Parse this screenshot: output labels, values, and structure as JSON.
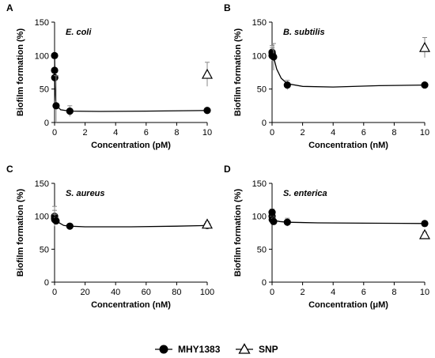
{
  "legend": {
    "entries": [
      {
        "label": "MHY1383",
        "marker": "filled-circle",
        "line": true
      },
      {
        "label": "SNP",
        "marker": "open-triangle",
        "line": true
      }
    ],
    "placement": "bottom-center"
  },
  "colors": {
    "mhy1383": "#000000",
    "snp": "#ffffff",
    "axis": "#000000",
    "errorbar": "#888888"
  },
  "chart_data": [
    {
      "panel": "A",
      "organism": "E. coli",
      "type": "scatter",
      "xlabel": "Concentration (pM)",
      "ylabel": "Biofilm formation (%)",
      "xlim": [
        0,
        10
      ],
      "ylim": [
        0,
        150
      ],
      "xticks": [
        0,
        2,
        4,
        6,
        8,
        10
      ],
      "yticks": [
        0,
        50,
        100,
        150
      ],
      "grid": false,
      "series": [
        {
          "name": "MHY1383",
          "points": [
            {
              "x": 0,
              "y": 100,
              "err": 0
            },
            {
              "x": 0.001,
              "y": 78,
              "err": 0
            },
            {
              "x": 0.01,
              "y": 67,
              "err": 0
            },
            {
              "x": 0.1,
              "y": 25,
              "err": 45
            },
            {
              "x": 1,
              "y": 17,
              "err": 8
            },
            {
              "x": 10,
              "y": 18,
              "err": 3
            }
          ],
          "curve": [
            [
              0,
              100
            ],
            [
              0.03,
              55
            ],
            [
              0.08,
              33
            ],
            [
              0.15,
              25
            ],
            [
              0.4,
              19
            ],
            [
              1,
              17
            ],
            [
              3,
              16.5
            ],
            [
              6,
              17
            ],
            [
              10,
              18
            ]
          ]
        },
        {
          "name": "SNP",
          "points": [
            {
              "x": 10,
              "y": 72,
              "err": 18
            }
          ]
        }
      ]
    },
    {
      "panel": "B",
      "organism": "B. subtilis",
      "type": "scatter",
      "xlabel": "Concentration (nM)",
      "ylabel": "Biofilm formation (%)",
      "xlim": [
        0,
        10
      ],
      "ylim": [
        0,
        150
      ],
      "xticks": [
        0,
        2,
        4,
        6,
        8,
        10
      ],
      "yticks": [
        0,
        50,
        100,
        150
      ],
      "grid": false,
      "series": [
        {
          "name": "MHY1383",
          "points": [
            {
              "x": 0,
              "y": 100,
              "err": 8
            },
            {
              "x": 0.001,
              "y": 105,
              "err": 10
            },
            {
              "x": 0.01,
              "y": 103,
              "err": 9
            },
            {
              "x": 0.1,
              "y": 98,
              "err": 20
            },
            {
              "x": 1,
              "y": 56,
              "err": 7
            },
            {
              "x": 10,
              "y": 56,
              "err": 3
            }
          ],
          "curve": [
            [
              0,
              103
            ],
            [
              0.1,
              98
            ],
            [
              0.3,
              80
            ],
            [
              0.6,
              66
            ],
            [
              1,
              58
            ],
            [
              2,
              54
            ],
            [
              4,
              53
            ],
            [
              7,
              55
            ],
            [
              10,
              56
            ]
          ]
        },
        {
          "name": "SNP",
          "points": [
            {
              "x": 10,
              "y": 112,
              "err": 15
            }
          ]
        }
      ]
    },
    {
      "panel": "C",
      "organism": "S. aureus",
      "type": "scatter",
      "xlabel": "Concentration (nM)",
      "ylabel": "Biofilm formation (%)",
      "xlim": [
        0,
        100
      ],
      "ylim": [
        0,
        150
      ],
      "xticks": [
        0,
        20,
        40,
        60,
        80,
        100
      ],
      "yticks": [
        0,
        50,
        100,
        150
      ],
      "grid": false,
      "series": [
        {
          "name": "MHY1383",
          "points": [
            {
              "x": 0,
              "y": 100,
              "err": 15
            },
            {
              "x": 0.01,
              "y": 97,
              "err": 12
            },
            {
              "x": 0.1,
              "y": 95,
              "err": 8
            },
            {
              "x": 1,
              "y": 93,
              "err": 5
            },
            {
              "x": 10,
              "y": 85,
              "err": 3
            },
            {
              "x": 100,
              "y": 86,
              "err": 3
            }
          ],
          "curve": [
            [
              0,
              99
            ],
            [
              1,
              95
            ],
            [
              3,
              90
            ],
            [
              6,
              86
            ],
            [
              10,
              85
            ],
            [
              20,
              84
            ],
            [
              50,
              84
            ],
            [
              80,
              85
            ],
            [
              100,
              86
            ]
          ]
        },
        {
          "name": "SNP",
          "points": [
            {
              "x": 100,
              "y": 88,
              "err": 4
            }
          ]
        }
      ]
    },
    {
      "panel": "D",
      "organism": "S. enterica",
      "type": "scatter",
      "xlabel": "Concentration (μM)",
      "ylabel": "Biofilm formation (%)",
      "xlim": [
        0,
        10
      ],
      "ylim": [
        0,
        150
      ],
      "xticks": [
        0,
        2,
        4,
        6,
        8,
        10
      ],
      "yticks": [
        0,
        50,
        100,
        150
      ],
      "grid": false,
      "series": [
        {
          "name": "MHY1383",
          "points": [
            {
              "x": 0,
              "y": 100,
              "err": 6
            },
            {
              "x": 0.001,
              "y": 106,
              "err": 5
            },
            {
              "x": 0.01,
              "y": 95,
              "err": 5
            },
            {
              "x": 0.1,
              "y": 92,
              "err": 5
            },
            {
              "x": 1,
              "y": 91,
              "err": 6
            },
            {
              "x": 10,
              "y": 89,
              "err": 3
            }
          ],
          "curve": [
            [
              0,
              97
            ],
            [
              0.1,
              94
            ],
            [
              0.5,
              92
            ],
            [
              1,
              91
            ],
            [
              3,
              90
            ],
            [
              6,
              89.5
            ],
            [
              10,
              89
            ]
          ]
        },
        {
          "name": "SNP",
          "points": [
            {
              "x": 10,
              "y": 72,
              "err": 4
            }
          ]
        }
      ]
    }
  ]
}
